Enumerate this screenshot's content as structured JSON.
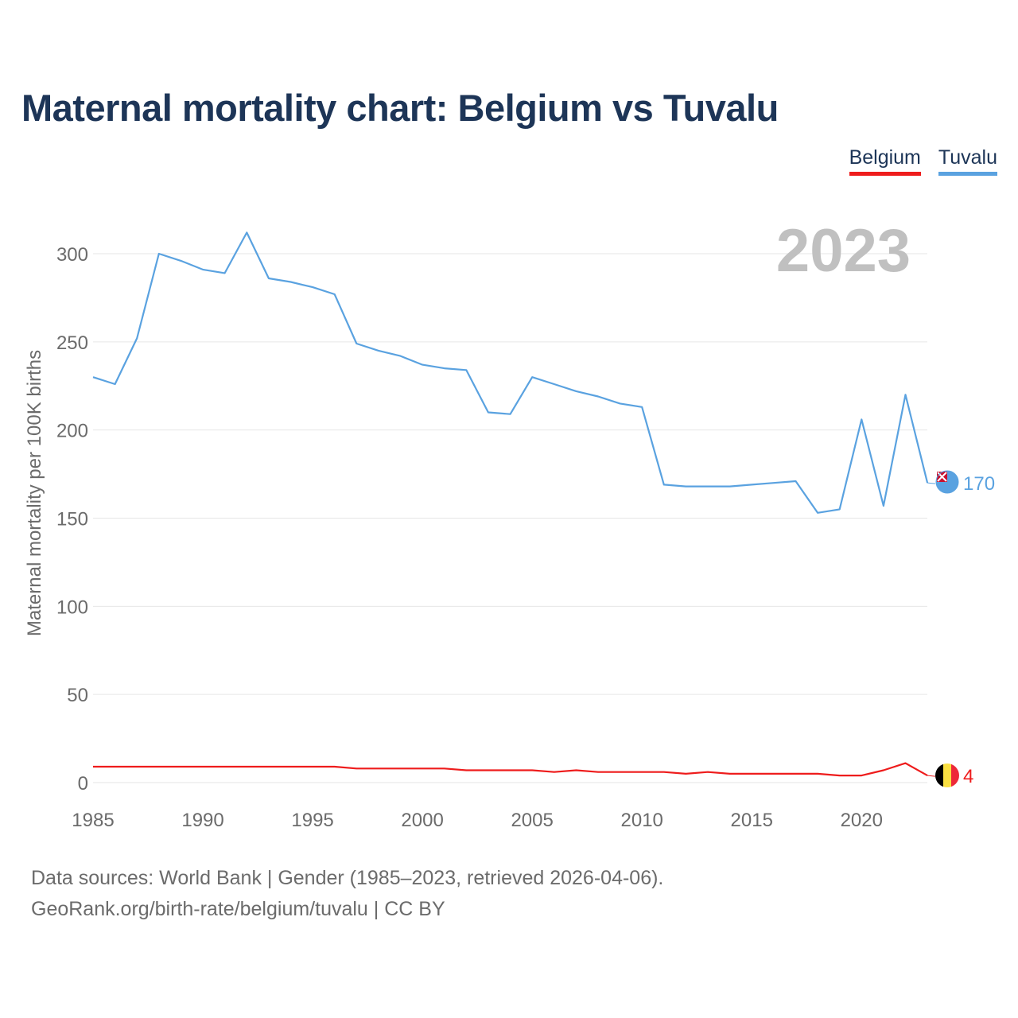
{
  "title": "Maternal mortality chart: Belgium vs Tuvalu",
  "legend": [
    {
      "label": "Belgium",
      "color": "#ee1c1c"
    },
    {
      "label": "Tuvalu",
      "color": "#5aa2e0"
    }
  ],
  "year_watermark": "2023",
  "footer": {
    "line1": "Data sources: World Bank | Gender (1985–2023, retrieved 2026-04-06).",
    "line2": "GeoRank.org/birth-rate/belgium/tuvalu | CC BY"
  },
  "chart_data": {
    "type": "line",
    "title": "Maternal mortality chart: Belgium vs Tuvalu",
    "xlabel": "",
    "ylabel": "Maternal mortality per 100K births",
    "xlim": [
      1985,
      2023
    ],
    "ylim": [
      0,
      330
    ],
    "x_ticks": [
      1985,
      1990,
      1995,
      2000,
      2005,
      2010,
      2015,
      2020
    ],
    "y_ticks": [
      0,
      50,
      100,
      150,
      200,
      250,
      300
    ],
    "grid": true,
    "legend_position": "top-right",
    "x": [
      1985,
      1986,
      1987,
      1988,
      1989,
      1990,
      1991,
      1992,
      1993,
      1994,
      1995,
      1996,
      1997,
      1998,
      1999,
      2000,
      2001,
      2002,
      2003,
      2004,
      2005,
      2006,
      2007,
      2008,
      2009,
      2010,
      2011,
      2012,
      2013,
      2014,
      2015,
      2016,
      2017,
      2018,
      2019,
      2020,
      2021,
      2022,
      2023
    ],
    "series": [
      {
        "name": "Tuvalu",
        "color": "#5aa2e0",
        "end_label": "170",
        "values": [
          230,
          226,
          252,
          300,
          296,
          291,
          289,
          312,
          286,
          284,
          281,
          277,
          249,
          245,
          242,
          237,
          235,
          234,
          210,
          209,
          230,
          226,
          222,
          219,
          215,
          213,
          169,
          168,
          168,
          168,
          169,
          170,
          171,
          153,
          155,
          206,
          157,
          220,
          170
        ]
      },
      {
        "name": "Belgium",
        "color": "#ee1c1c",
        "end_label": "4",
        "values": [
          9,
          9,
          9,
          9,
          9,
          9,
          9,
          9,
          9,
          9,
          9,
          9,
          8,
          8,
          8,
          8,
          8,
          7,
          7,
          7,
          7,
          6,
          7,
          6,
          6,
          6,
          6,
          5,
          6,
          5,
          5,
          5,
          5,
          5,
          4,
          4,
          7,
          11,
          4
        ]
      }
    ]
  }
}
